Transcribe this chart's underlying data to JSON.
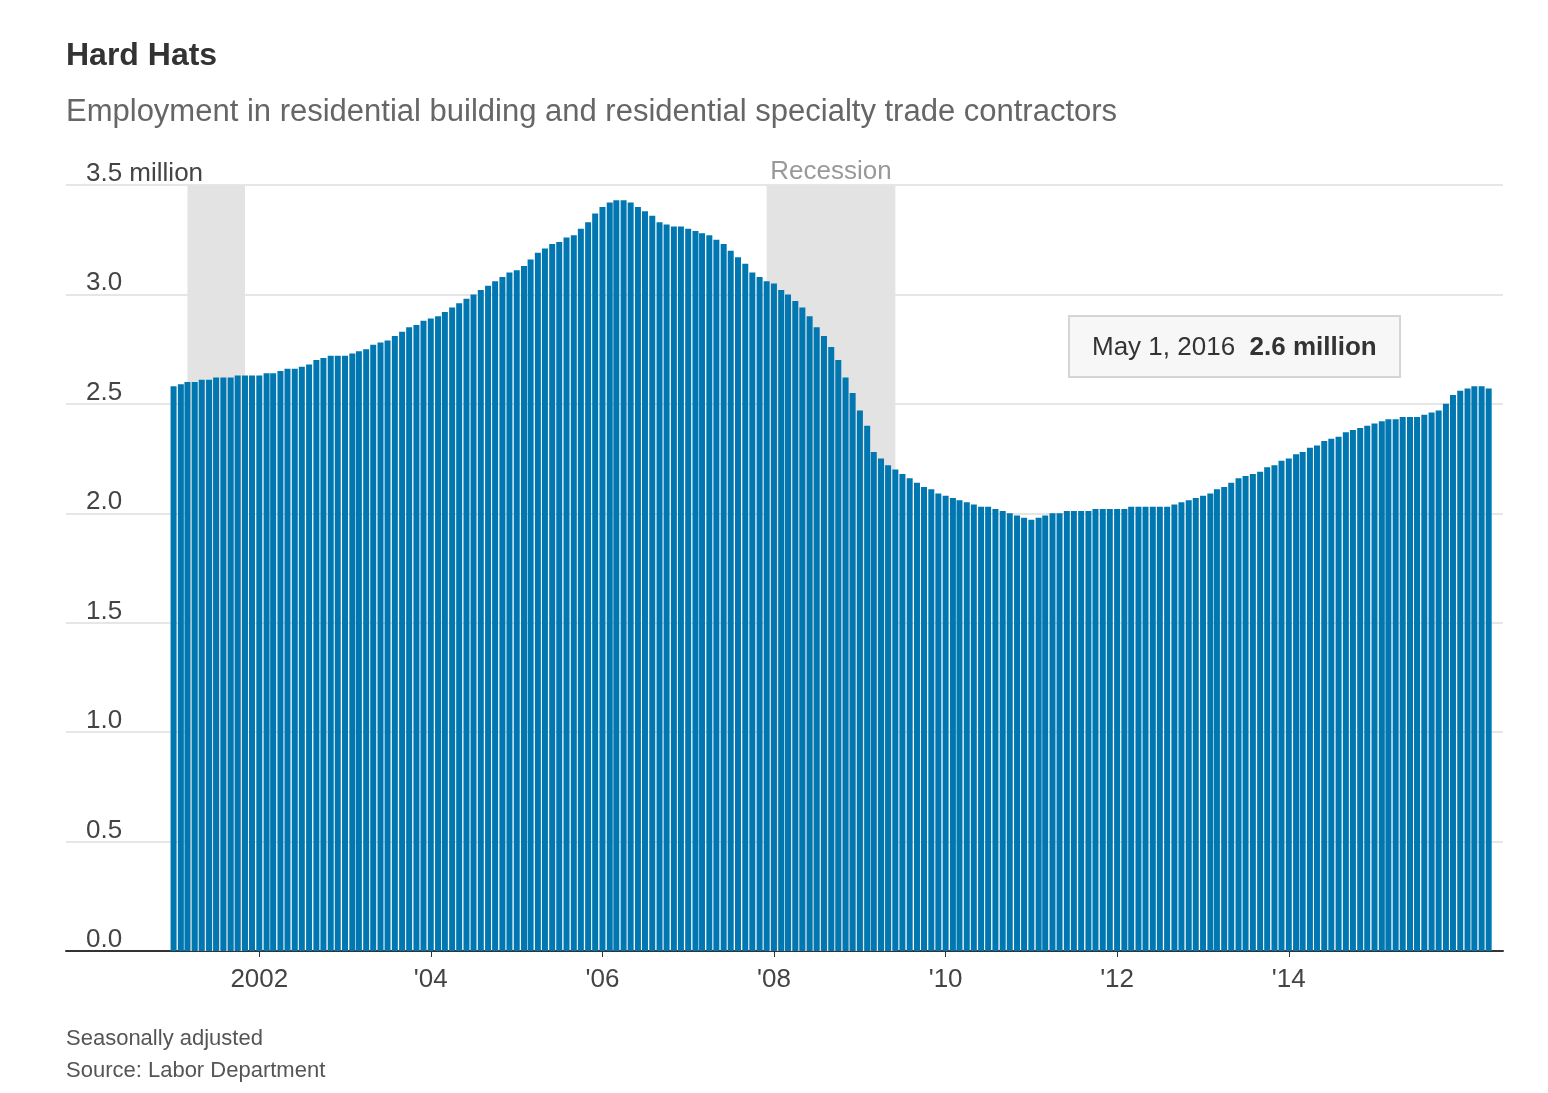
{
  "chart_data": {
    "type": "bar",
    "title": "Hard Hats",
    "subtitle": "Employment in residential building and residential specialty trade contractors",
    "x": [
      "2001-01",
      "2001-02",
      "2001-03",
      "2001-04",
      "2001-05",
      "2001-06",
      "2001-07",
      "2001-08",
      "2001-09",
      "2001-10",
      "2001-11",
      "2001-12",
      "2002-01",
      "2002-02",
      "2002-03",
      "2002-04",
      "2002-05",
      "2002-06",
      "2002-07",
      "2002-08",
      "2002-09",
      "2002-10",
      "2002-11",
      "2002-12",
      "2003-01",
      "2003-02",
      "2003-03",
      "2003-04",
      "2003-05",
      "2003-06",
      "2003-07",
      "2003-08",
      "2003-09",
      "2003-10",
      "2003-11",
      "2003-12",
      "2004-01",
      "2004-02",
      "2004-03",
      "2004-04",
      "2004-05",
      "2004-06",
      "2004-07",
      "2004-08",
      "2004-09",
      "2004-10",
      "2004-11",
      "2004-12",
      "2005-01",
      "2005-02",
      "2005-03",
      "2005-04",
      "2005-05",
      "2005-06",
      "2005-07",
      "2005-08",
      "2005-09",
      "2005-10",
      "2005-11",
      "2005-12",
      "2006-01",
      "2006-02",
      "2006-03",
      "2006-04",
      "2006-05",
      "2006-06",
      "2006-07",
      "2006-08",
      "2006-09",
      "2006-10",
      "2006-11",
      "2006-12",
      "2007-01",
      "2007-02",
      "2007-03",
      "2007-04",
      "2007-05",
      "2007-06",
      "2007-07",
      "2007-08",
      "2007-09",
      "2007-10",
      "2007-11",
      "2007-12",
      "2008-01",
      "2008-02",
      "2008-03",
      "2008-04",
      "2008-05",
      "2008-06",
      "2008-07",
      "2008-08",
      "2008-09",
      "2008-10",
      "2008-11",
      "2008-12",
      "2009-01",
      "2009-02",
      "2009-03",
      "2009-04",
      "2009-05",
      "2009-06",
      "2009-07",
      "2009-08",
      "2009-09",
      "2009-10",
      "2009-11",
      "2009-12",
      "2010-01",
      "2010-02",
      "2010-03",
      "2010-04",
      "2010-05",
      "2010-06",
      "2010-07",
      "2010-08",
      "2010-09",
      "2010-10",
      "2010-11",
      "2010-12",
      "2011-01",
      "2011-02",
      "2011-03",
      "2011-04",
      "2011-05",
      "2011-06",
      "2011-07",
      "2011-08",
      "2011-09",
      "2011-10",
      "2011-11",
      "2011-12",
      "2012-01",
      "2012-02",
      "2012-03",
      "2012-04",
      "2012-05",
      "2012-06",
      "2012-07",
      "2012-08",
      "2012-09",
      "2012-10",
      "2012-11",
      "2012-12",
      "2013-01",
      "2013-02",
      "2013-03",
      "2013-04",
      "2013-05",
      "2013-06",
      "2013-07",
      "2013-08",
      "2013-09",
      "2013-10",
      "2013-11",
      "2013-12",
      "2014-01",
      "2014-02",
      "2014-03",
      "2014-04",
      "2014-05",
      "2014-06",
      "2014-07",
      "2014-08",
      "2014-09",
      "2014-10",
      "2014-11",
      "2014-12",
      "2015-01",
      "2015-02",
      "2015-03",
      "2015-04",
      "2015-05",
      "2015-06",
      "2015-07",
      "2015-08",
      "2015-09",
      "2015-10",
      "2015-11",
      "2015-12",
      "2016-01",
      "2016-02",
      "2016-03",
      "2016-04",
      "2016-05"
    ],
    "values": [
      2.58,
      2.59,
      2.6,
      2.6,
      2.61,
      2.61,
      2.62,
      2.62,
      2.62,
      2.63,
      2.63,
      2.63,
      2.63,
      2.64,
      2.64,
      2.65,
      2.66,
      2.66,
      2.67,
      2.68,
      2.7,
      2.71,
      2.72,
      2.72,
      2.72,
      2.73,
      2.74,
      2.75,
      2.77,
      2.78,
      2.79,
      2.81,
      2.83,
      2.85,
      2.86,
      2.88,
      2.89,
      2.9,
      2.92,
      2.94,
      2.96,
      2.98,
      3.0,
      3.02,
      3.04,
      3.06,
      3.08,
      3.1,
      3.11,
      3.13,
      3.16,
      3.19,
      3.21,
      3.23,
      3.24,
      3.26,
      3.27,
      3.3,
      3.33,
      3.37,
      3.4,
      3.42,
      3.43,
      3.43,
      3.42,
      3.4,
      3.38,
      3.36,
      3.33,
      3.32,
      3.31,
      3.31,
      3.3,
      3.29,
      3.28,
      3.27,
      3.25,
      3.23,
      3.2,
      3.17,
      3.14,
      3.1,
      3.08,
      3.06,
      3.05,
      3.02,
      3.0,
      2.97,
      2.94,
      2.9,
      2.85,
      2.81,
      2.76,
      2.7,
      2.62,
      2.55,
      2.47,
      2.4,
      2.28,
      2.25,
      2.22,
      2.2,
      2.18,
      2.16,
      2.14,
      2.12,
      2.11,
      2.09,
      2.08,
      2.07,
      2.06,
      2.05,
      2.04,
      2.03,
      2.03,
      2.02,
      2.01,
      2.0,
      1.99,
      1.98,
      1.97,
      1.98,
      1.99,
      2.0,
      2.0,
      2.01,
      2.01,
      2.01,
      2.01,
      2.02,
      2.02,
      2.02,
      2.02,
      2.02,
      2.03,
      2.03,
      2.03,
      2.03,
      2.03,
      2.03,
      2.04,
      2.05,
      2.06,
      2.07,
      2.08,
      2.09,
      2.11,
      2.12,
      2.14,
      2.16,
      2.17,
      2.18,
      2.19,
      2.21,
      2.22,
      2.24,
      2.25,
      2.27,
      2.28,
      2.3,
      2.31,
      2.33,
      2.34,
      2.35,
      2.37,
      2.38,
      2.39,
      2.4,
      2.41,
      2.42,
      2.43,
      2.43,
      2.44,
      2.44,
      2.44,
      2.45,
      2.46,
      2.47,
      2.5,
      2.54,
      2.56,
      2.57,
      2.58,
      2.58,
      2.57
    ],
    "color": "#0077b0",
    "xlim": [
      "1999-10",
      "2016-07"
    ],
    "xticks": [
      {
        "value": "2002",
        "label": "2002"
      },
      {
        "value": "2004",
        "label": "'04"
      },
      {
        "value": "2006",
        "label": "'06"
      },
      {
        "value": "2008",
        "label": "'08"
      },
      {
        "value": "2010",
        "label": "'10"
      },
      {
        "value": "2012",
        "label": "'12"
      },
      {
        "value": "2014",
        "label": "'14"
      }
    ],
    "ylim": [
      0,
      3.5
    ],
    "yticks": [
      {
        "value": 0,
        "label": "0.0"
      },
      {
        "value": 0.5,
        "label": "0.5"
      },
      {
        "value": 1,
        "label": "1.0"
      },
      {
        "value": 1.5,
        "label": "1.5"
      },
      {
        "value": 2,
        "label": "2.0"
      },
      {
        "value": 2.5,
        "label": "2.5"
      },
      {
        "value": 3,
        "label": "3.0"
      },
      {
        "value": 3.5,
        "label": "3.5 million"
      }
    ],
    "bands": [
      {
        "axis": "x",
        "from": "2001-03",
        "to": "2001-11",
        "color": "#e3e3e3"
      },
      {
        "axis": "x",
        "from": "2007-12",
        "to": "2009-06",
        "label": "Recession",
        "color": "#e3e3e3"
      }
    ],
    "annotations": [
      "May 1, 2016 2.6 million",
      "Seasonally adjusted",
      "Source: Labor Department"
    ],
    "grid": "y"
  }
}
